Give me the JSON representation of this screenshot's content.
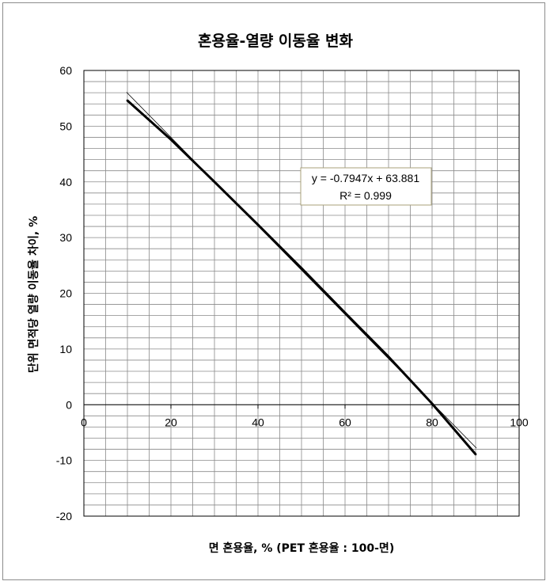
{
  "chart_data": {
    "type": "line",
    "title": "혼용율-열량 이동율 변화",
    "xlabel": "면 혼용율, % (PET 혼용율 : 100-면)",
    "ylabel": "단위 면적당 열량 이동율 차이, %",
    "xlim": [
      0,
      100
    ],
    "ylim": [
      -20,
      60
    ],
    "x_ticks": [
      "0",
      "20",
      "40",
      "60",
      "80",
      "100"
    ],
    "y_ticks": [
      "60",
      "50",
      "40",
      "30",
      "20",
      "10",
      "0",
      "-10",
      "-20"
    ],
    "grid": true,
    "series": [
      {
        "x": [
          10,
          20,
          30,
          40,
          50,
          60,
          70,
          80,
          90
        ],
        "y": [
          54.6,
          47.6,
          40.0,
          32.3,
          24.5,
          16.5,
          8.6,
          0.2,
          -8.9
        ]
      }
    ],
    "trendline": {
      "type": "linear",
      "slope": -0.7947,
      "intercept": 63.881,
      "x_range": [
        10,
        90
      ],
      "equation": "y = -0.7947x + 63.881",
      "r_squared": "R² = 0.999"
    }
  }
}
